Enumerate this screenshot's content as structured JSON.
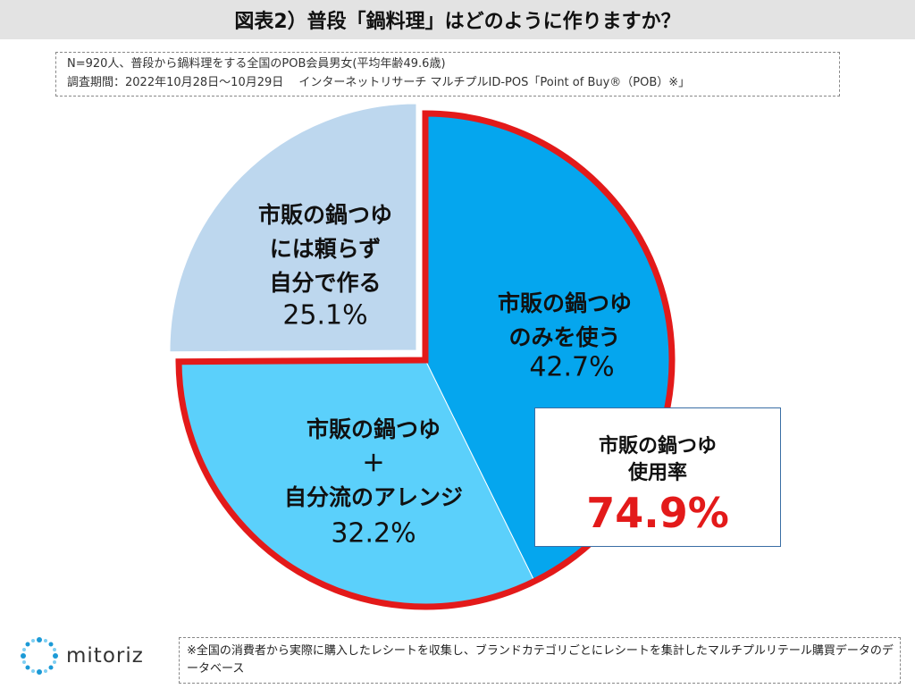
{
  "title": "図表2）普段「鍋料理」はどのように作りますか？",
  "notes": [
    "N=920人、普段から鍋料理をする全国のPOB会員男女(平均年齢49.6歳)",
    "調査期間：2022年10月28日〜10月29日　 インターネットリサーチ マルチプルID-POS「Point of Buy®（POB）※」"
  ],
  "chart_data": {
    "type": "pie",
    "unit": "%",
    "slices": [
      {
        "lines": [
          "市販の鍋つゆ",
          "のみを使う"
        ],
        "value": 42.7,
        "label": "42.7%",
        "color": "#05a6ee"
      },
      {
        "lines": [
          "市販の鍋つゆ",
          "＋",
          "自分流のアレンジ"
        ],
        "value": 32.2,
        "label": "32.2%",
        "color": "#5bd0fb"
      },
      {
        "lines": [
          "市販の鍋つゆ",
          "には頼らず",
          "自分で作る"
        ],
        "value": 25.1,
        "label": "25.1%",
        "color": "#bdd7ee"
      }
    ],
    "highlight_color": "#e31a1a"
  },
  "callout": {
    "line1": "市販の鍋つゆ",
    "line2": "使用率",
    "value": "74.9%"
  },
  "logo": {
    "text": "mitoriz",
    "color": "#2e75b6"
  },
  "footnote": "※全国の消費者から実際に購入したレシートを収集し、ブランドカテゴリごとにレシートを集計したマルチプルリテール購買データのデータベース"
}
